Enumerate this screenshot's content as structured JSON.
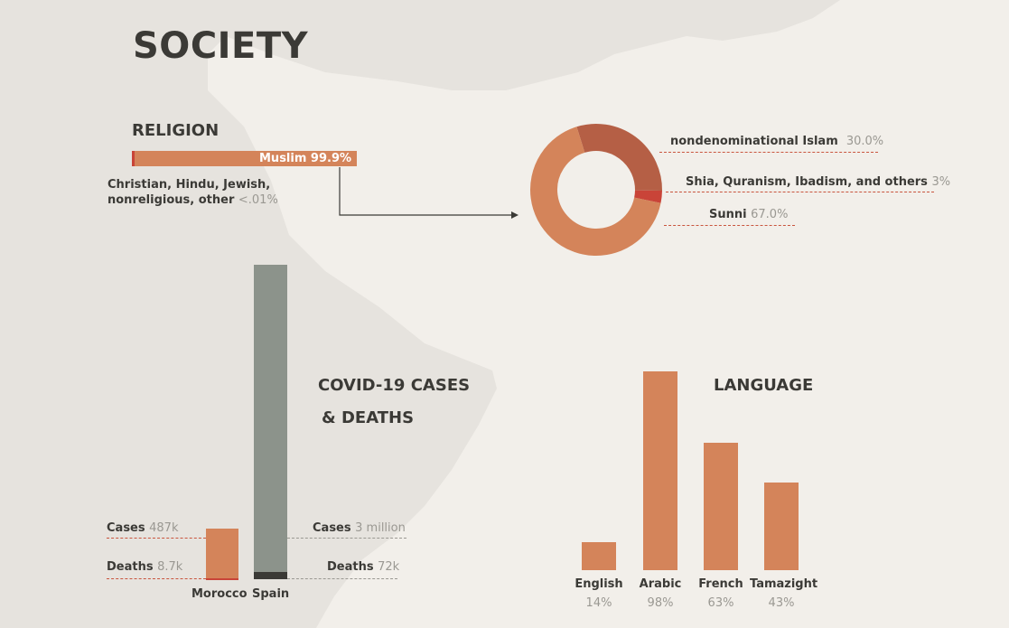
{
  "page": {
    "title": "SOCIETY"
  },
  "colors": {
    "orange": "#d4845a",
    "dark_orange": "#b55f45",
    "red": "#c94438",
    "grey": "#8c938b",
    "dark": "#3b3a36",
    "muted": "#9a9892"
  },
  "religion": {
    "heading": "RELIGION",
    "muslim_label": "Muslim",
    "muslim_value": "99.9%",
    "muslim_share": 99.9,
    "other_label_line1": "Christian, Hindu, Jewish,",
    "other_label_line2": "nonreligious, other",
    "other_value": "<.01%"
  },
  "covid": {
    "heading_line1": "COVID-19 CASES",
    "heading_line2": "& DEATHS",
    "cases_label": "Cases",
    "deaths_label": "Deaths",
    "morocco": {
      "name": "Morocco",
      "cases": "487k",
      "deaths": "8.7k"
    },
    "spain": {
      "name": "Spain",
      "cases": "3 million",
      "deaths": "72k"
    }
  },
  "language": {
    "heading": "LANGUAGE"
  },
  "chart_data": [
    {
      "type": "bar",
      "categories": [
        "Muslim",
        "Christian, Hindu, Jewish, nonreligious, other"
      ],
      "values": [
        99.9,
        0.01
      ]
    },
    {
      "type": "pie",
      "categories": [
        "nondenominational Islam",
        "Shia, Quranism, Ibadism, and others",
        "Sunni"
      ],
      "values": [
        30.0,
        3,
        67.0
      ],
      "value_labels": [
        "30.0%",
        "3%",
        "67.0%"
      ]
    },
    {
      "type": "bar",
      "categories": [
        "Morocco",
        "Spain"
      ],
      "series": [
        {
          "name": "Cases",
          "values": [
            487000,
            3000000
          ]
        },
        {
          "name": "Deaths",
          "values": [
            8700,
            72000
          ]
        }
      ]
    },
    {
      "type": "bar",
      "categories": [
        "English",
        "Arabic",
        "French",
        "Tamazight"
      ],
      "values": [
        14,
        98,
        63,
        43
      ],
      "value_labels": [
        "14%",
        "98%",
        "63%",
        "43%"
      ]
    }
  ]
}
